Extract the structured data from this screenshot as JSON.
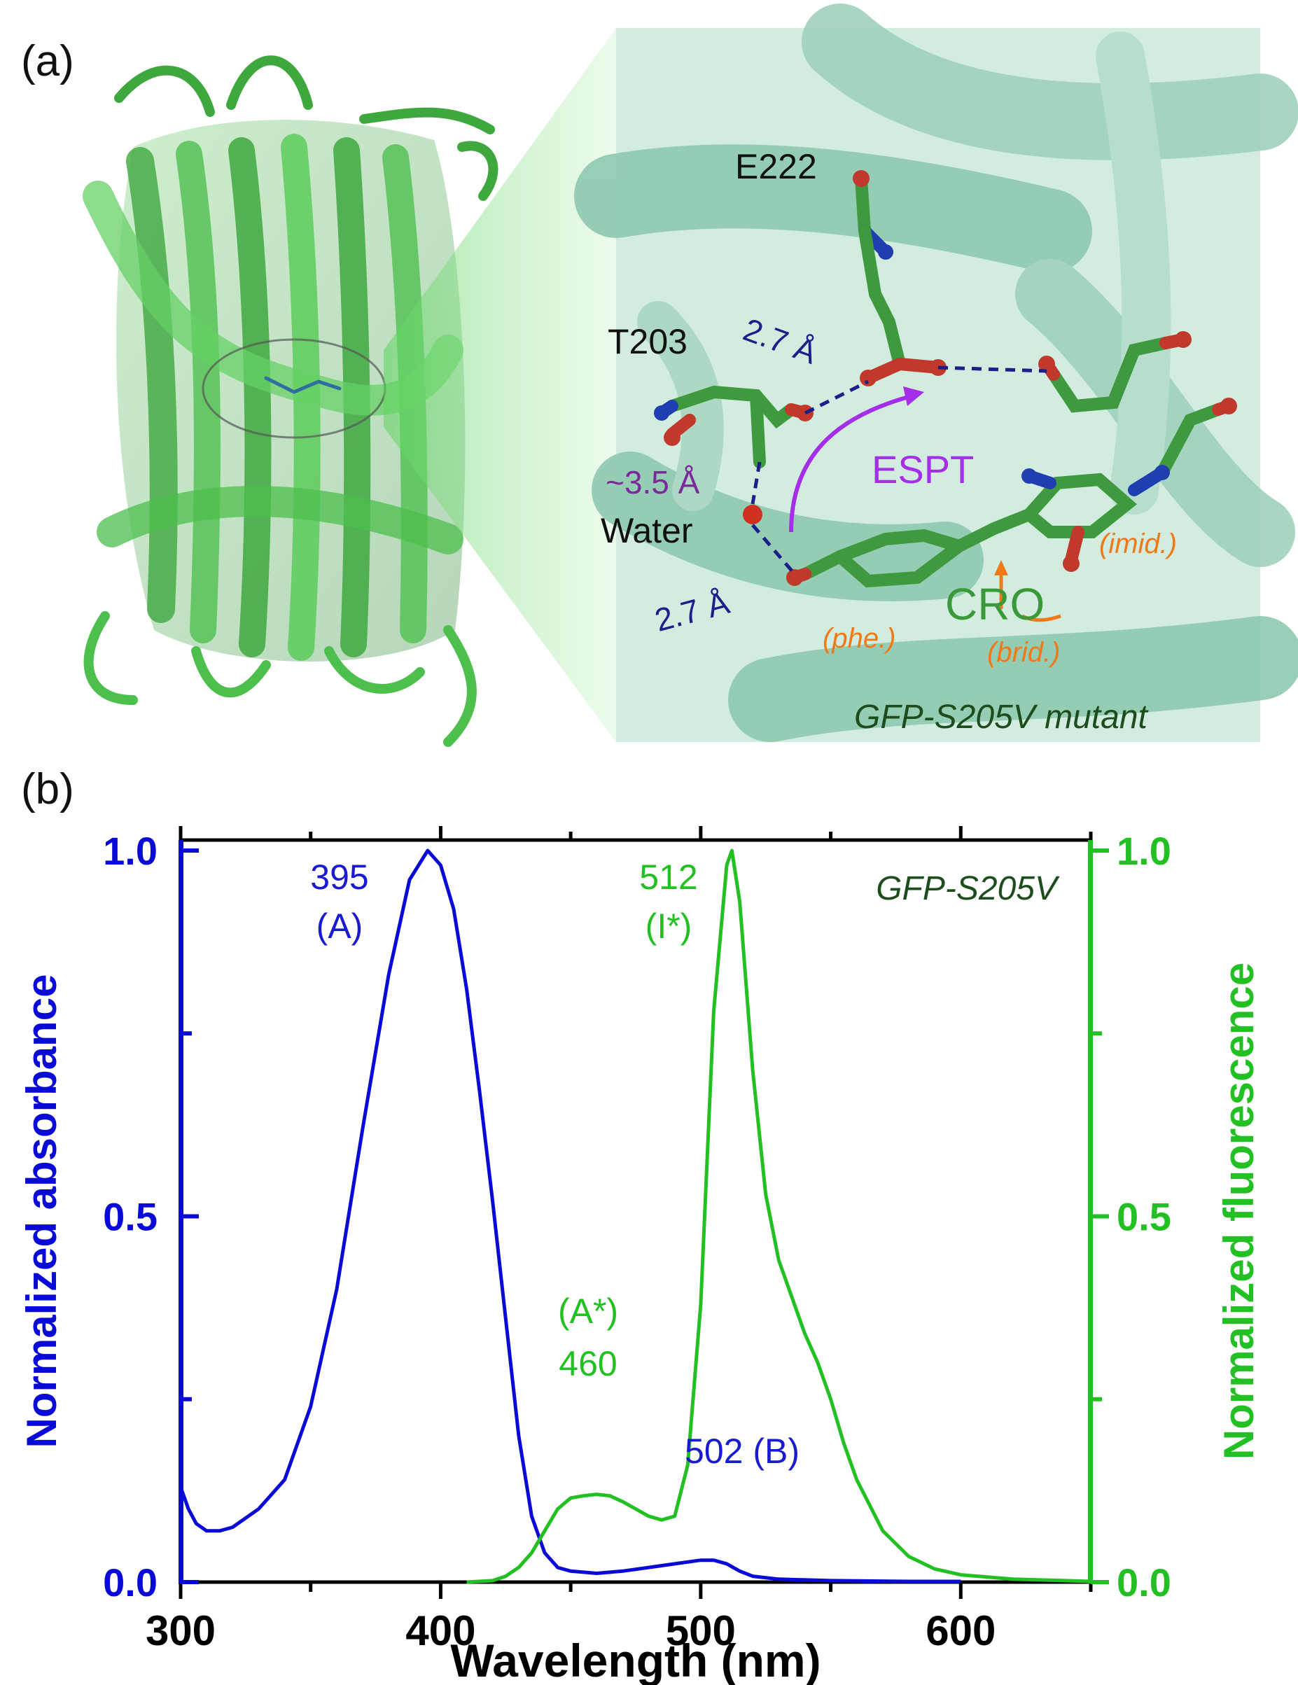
{
  "panel_a": {
    "label": "(a)",
    "residues": {
      "e222": "E222",
      "t203": "T203",
      "water": "Water",
      "cro": "CRO"
    },
    "distances": {
      "d1": "2.7 Å",
      "d2": "~3.5 Å",
      "d3": "2.7 Å"
    },
    "process": "ESPT",
    "fragments": {
      "imid": "(imid.)",
      "phe": "(phe.)",
      "brid": "(brid.)"
    },
    "mutant_label": "GFP-S205V mutant",
    "colors": {
      "protein": "#4fbf4f",
      "carbon": "#3f9a3f",
      "oxygen": "#c0392b",
      "nitrogen": "#1f3fb0",
      "hbond": "#1b1f8a",
      "espt_arrow": "#a52ee8"
    }
  },
  "panel_b": {
    "label": "(b)",
    "chart_data": {
      "type": "line",
      "title": "GFP-S205V",
      "xlabel": "Wavelength (nm)",
      "ylabel_left": "Normalized absorbance",
      "ylabel_right": "Normalized fluorescence",
      "xlim": [
        300,
        650
      ],
      "ylim": [
        0,
        1
      ],
      "x_ticks": [
        "300",
        "400",
        "500",
        "600"
      ],
      "y_ticks_left": [
        "0.0",
        "0.5",
        "1.0"
      ],
      "y_ticks_right": [
        "0.0",
        "0.5",
        "1.0"
      ],
      "grid": false,
      "series": [
        {
          "axis": "left",
          "color": "#0a0ad6",
          "points": [
            [
              300,
              0.13
            ],
            [
              303,
              0.1
            ],
            [
              306,
              0.08
            ],
            [
              310,
              0.07
            ],
            [
              315,
              0.07
            ],
            [
              320,
              0.075
            ],
            [
              330,
              0.1
            ],
            [
              340,
              0.14
            ],
            [
              350,
              0.24
            ],
            [
              360,
              0.4
            ],
            [
              370,
              0.62
            ],
            [
              380,
              0.83
            ],
            [
              388,
              0.96
            ],
            [
              395,
              1.0
            ],
            [
              400,
              0.98
            ],
            [
              405,
              0.92
            ],
            [
              410,
              0.81
            ],
            [
              415,
              0.67
            ],
            [
              420,
              0.52
            ],
            [
              425,
              0.36
            ],
            [
              430,
              0.2
            ],
            [
              435,
              0.09
            ],
            [
              440,
              0.04
            ],
            [
              445,
              0.02
            ],
            [
              450,
              0.015
            ],
            [
              460,
              0.012
            ],
            [
              470,
              0.015
            ],
            [
              480,
              0.02
            ],
            [
              490,
              0.025
            ],
            [
              500,
              0.03
            ],
            [
              505,
              0.03
            ],
            [
              510,
              0.025
            ],
            [
              515,
              0.015
            ],
            [
              520,
              0.008
            ],
            [
              530,
              0.004
            ],
            [
              550,
              0.002
            ],
            [
              580,
              0.001
            ],
            [
              600,
              0.001
            ]
          ]
        },
        {
          "axis": "right",
          "color": "#22c022",
          "points": [
            [
              410,
              0.0
            ],
            [
              420,
              0.002
            ],
            [
              425,
              0.008
            ],
            [
              430,
              0.02
            ],
            [
              435,
              0.04
            ],
            [
              440,
              0.07
            ],
            [
              445,
              0.1
            ],
            [
              450,
              0.115
            ],
            [
              455,
              0.118
            ],
            [
              460,
              0.12
            ],
            [
              465,
              0.118
            ],
            [
              470,
              0.11
            ],
            [
              475,
              0.1
            ],
            [
              480,
              0.09
            ],
            [
              485,
              0.085
            ],
            [
              490,
              0.09
            ],
            [
              495,
              0.16
            ],
            [
              500,
              0.38
            ],
            [
              505,
              0.78
            ],
            [
              510,
              0.98
            ],
            [
              512,
              1.0
            ],
            [
              515,
              0.93
            ],
            [
              520,
              0.7
            ],
            [
              525,
              0.53
            ],
            [
              530,
              0.44
            ],
            [
              535,
              0.39
            ],
            [
              540,
              0.34
            ],
            [
              545,
              0.3
            ],
            [
              550,
              0.25
            ],
            [
              555,
              0.19
            ],
            [
              560,
              0.14
            ],
            [
              570,
              0.07
            ],
            [
              580,
              0.035
            ],
            [
              590,
              0.018
            ],
            [
              600,
              0.01
            ],
            [
              620,
              0.004
            ],
            [
              640,
              0.002
            ],
            [
              650,
              0.001
            ]
          ]
        }
      ],
      "annotations": {
        "peak_a_value": "395",
        "peak_a_state": "(A)",
        "peak_i_value": "512",
        "peak_i_state": "(I*)",
        "peak_astar_state": "(A*)",
        "peak_astar_value": "460",
        "peak_b": "502 (B)"
      }
    }
  }
}
